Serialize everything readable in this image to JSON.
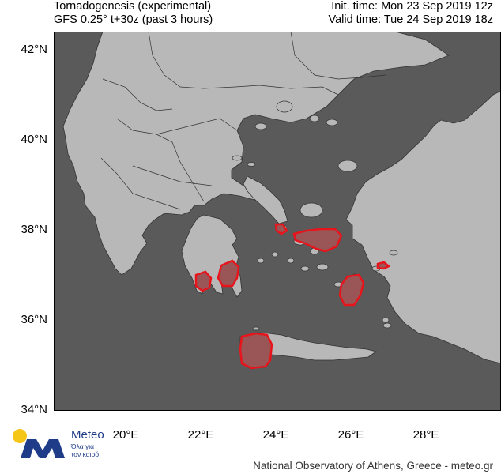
{
  "header": {
    "title": "Tornadogenesis (experimental)",
    "subtitle": "GFS 0.25° t+30z (past 3 hours)",
    "init_time": "Init. time: Mon 23 Sep 2019 12z",
    "valid_time": "Valid time: Tue 24 Sep 2019 18z"
  },
  "axes": {
    "lat_ticks": [
      "42°N",
      "40°N",
      "38°N",
      "36°N",
      "34°N"
    ],
    "lon_ticks": [
      "20°E",
      "22°E",
      "24°E",
      "26°E",
      "28°E"
    ]
  },
  "logo": {
    "name": "Meteo",
    "tagline": "Όλα για τον καιρό"
  },
  "footer": {
    "credit": "National Observatory of Athens, Greece - meteo.gr"
  },
  "colors": {
    "sea": "#5a5a5a",
    "land": "#b8b8b8",
    "border": "#333333",
    "hazard_outline": "#e8141c",
    "hazard_fill": "#9a5656",
    "logo_blue": "#1f3c88",
    "logo_sun": "#f5c518"
  }
}
